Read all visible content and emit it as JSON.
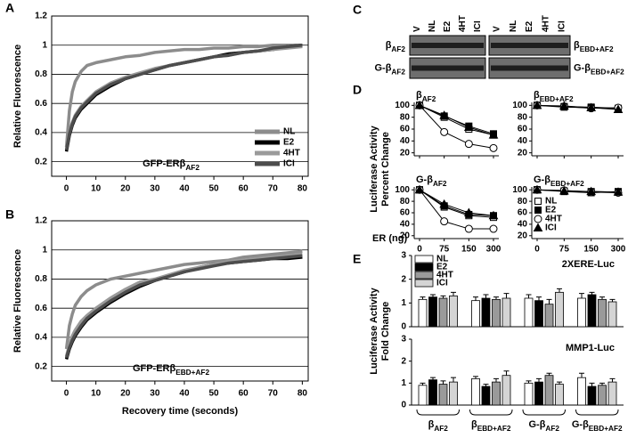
{
  "chart_data": [
    {
      "type": "line",
      "panel": "A",
      "ylabel": "Relative Fluorescence",
      "annotation": {
        "text": "GFP-ERβ",
        "sub": "AF2"
      },
      "x": [
        0,
        1,
        2,
        3,
        5,
        7,
        10,
        15,
        20,
        25,
        30,
        35,
        40,
        45,
        50,
        55,
        60,
        65,
        70,
        75,
        80
      ],
      "series": [
        {
          "name": "NL",
          "color": "#8c8c8c",
          "values": [
            0.3,
            0.55,
            0.68,
            0.75,
            0.82,
            0.86,
            0.88,
            0.9,
            0.92,
            0.93,
            0.95,
            0.96,
            0.97,
            0.97,
            0.98,
            0.98,
            0.99,
            0.99,
            1.0,
            1.0,
            1.0
          ]
        },
        {
          "name": "E2",
          "color": "#000000",
          "values": [
            0.27,
            0.38,
            0.45,
            0.5,
            0.56,
            0.6,
            0.66,
            0.72,
            0.77,
            0.8,
            0.83,
            0.86,
            0.88,
            0.9,
            0.92,
            0.94,
            0.95,
            0.96,
            0.97,
            0.99,
            1.0
          ]
        },
        {
          "name": "4HT",
          "color": "#9a9a9a",
          "values": [
            0.3,
            0.4,
            0.47,
            0.52,
            0.58,
            0.62,
            0.68,
            0.74,
            0.78,
            0.81,
            0.84,
            0.86,
            0.88,
            0.9,
            0.92,
            0.93,
            0.95,
            0.96,
            0.97,
            0.98,
            0.99
          ]
        },
        {
          "name": "ICI",
          "color": "#4d4d4d",
          "values": [
            0.28,
            0.39,
            0.46,
            0.51,
            0.57,
            0.61,
            0.67,
            0.73,
            0.77,
            0.8,
            0.83,
            0.86,
            0.88,
            0.9,
            0.92,
            0.93,
            0.95,
            0.96,
            0.98,
            0.99,
            1.0
          ]
        }
      ],
      "xlim": [
        -5,
        82
      ],
      "ylim": [
        0.1,
        1.2
      ],
      "xticks": [
        0,
        10,
        20,
        30,
        40,
        50,
        60,
        70,
        80
      ],
      "yticks": [
        0.2,
        0.4,
        0.6,
        0.8,
        1,
        1.2
      ],
      "grid": true,
      "legend": "right"
    },
    {
      "type": "line",
      "panel": "B",
      "ylabel": "Relative Fluorescence",
      "xlabel": "Recovery time (seconds)",
      "annotation": {
        "text": "GFP-ERβ",
        "sub": "EBD+AF2"
      },
      "x": [
        0,
        1,
        2,
        3,
        5,
        7,
        10,
        15,
        20,
        25,
        30,
        35,
        40,
        45,
        50,
        55,
        60,
        65,
        70,
        75,
        80
      ],
      "series": [
        {
          "name": "NL",
          "color": "#8c8c8c",
          "values": [
            0.32,
            0.48,
            0.56,
            0.62,
            0.68,
            0.72,
            0.76,
            0.8,
            0.82,
            0.84,
            0.86,
            0.88,
            0.9,
            0.91,
            0.92,
            0.93,
            0.95,
            0.96,
            0.97,
            0.98,
            0.99
          ]
        },
        {
          "name": "E2",
          "color": "#000000",
          "values": [
            0.25,
            0.32,
            0.37,
            0.41,
            0.47,
            0.52,
            0.57,
            0.64,
            0.7,
            0.75,
            0.79,
            0.82,
            0.85,
            0.88,
            0.9,
            0.91,
            0.92,
            0.93,
            0.94,
            0.94,
            0.95
          ]
        },
        {
          "name": "4HT",
          "color": "#9a9a9a",
          "values": [
            0.27,
            0.35,
            0.41,
            0.45,
            0.51,
            0.55,
            0.6,
            0.67,
            0.73,
            0.78,
            0.8,
            0.83,
            0.86,
            0.88,
            0.9,
            0.92,
            0.93,
            0.94,
            0.95,
            0.96,
            0.97
          ]
        },
        {
          "name": "ICI",
          "color": "#4d4d4d",
          "values": [
            0.26,
            0.33,
            0.38,
            0.42,
            0.48,
            0.53,
            0.58,
            0.65,
            0.71,
            0.76,
            0.79,
            0.82,
            0.85,
            0.87,
            0.89,
            0.91,
            0.92,
            0.93,
            0.94,
            0.95,
            0.96
          ]
        }
      ],
      "xlim": [
        -5,
        82
      ],
      "ylim": [
        0.1,
        1.2
      ],
      "xticks": [
        0,
        10,
        20,
        30,
        40,
        50,
        60,
        70,
        80
      ],
      "yticks": [
        0.2,
        0.4,
        0.6,
        0.8,
        1,
        1.2
      ],
      "grid": true
    },
    {
      "type": "blot",
      "panel": "C",
      "lanes": [
        "V",
        "NL",
        "E2",
        "4HT",
        "ICI"
      ],
      "left_rows": [
        {
          "text": "β",
          "sub": "AF2"
        },
        {
          "text": "G-β",
          "sub": "AF2"
        }
      ],
      "right_rows": [
        {
          "text": "β",
          "sub": "EBD+AF2"
        },
        {
          "text": "G-β",
          "sub": "EBD+AF2"
        }
      ]
    },
    {
      "type": "line",
      "panel": "D",
      "ylabel": [
        "Luciferase Activity",
        "Percent Change"
      ],
      "xlabel": "ER (ng)",
      "categories": [
        "0",
        "75",
        "150",
        "300"
      ],
      "ylim": [
        15,
        105
      ],
      "yticks": [
        20,
        40,
        60,
        80,
        100
      ],
      "series": [
        {
          "name": "NL",
          "marker": "square",
          "color": "#ffffff"
        },
        {
          "name": "E2",
          "marker": "square",
          "color": "#000000"
        },
        {
          "name": "4HT",
          "marker": "circle",
          "color": "#ffffff"
        },
        {
          "name": "ICI",
          "marker": "triangle",
          "color": "#000000"
        }
      ],
      "legend": "lower-right",
      "subplots": [
        {
          "title": {
            "text": "β",
            "sub": "AF2"
          },
          "values": [
            [
              100,
              80,
              60,
              50
            ],
            [
              100,
              82,
              65,
              52
            ],
            [
              100,
              55,
              35,
              28
            ],
            [
              100,
              83,
              63,
              50
            ]
          ]
        },
        {
          "title": {
            "text": "β",
            "sub": "EBD+AF2"
          },
          "values": [
            [
              100,
              98,
              97,
              95
            ],
            [
              100,
              97,
              96,
              94
            ],
            [
              100,
              98,
              95,
              96
            ],
            [
              100,
              99,
              96,
              93
            ]
          ]
        },
        {
          "title": {
            "text": "G-β",
            "sub": "AF2"
          },
          "values": [
            [
              100,
              70,
              55,
              52
            ],
            [
              100,
              72,
              57,
              55
            ],
            [
              100,
              45,
              32,
              32
            ],
            [
              100,
              75,
              60,
              55
            ]
          ]
        },
        {
          "title": {
            "text": "G-β",
            "sub": "EBD+AF2"
          },
          "values": [
            [
              100,
              98,
              97,
              96
            ],
            [
              100,
              97,
              95,
              97
            ],
            [
              100,
              99,
              96,
              95
            ],
            [
              100,
              98,
              97,
              96
            ]
          ]
        }
      ]
    },
    {
      "type": "bar",
      "panel": "E",
      "ylabel": [
        "Luciferase Activity",
        "Fold Change"
      ],
      "groups": [
        {
          "text": "β",
          "sub": "AF2"
        },
        {
          "text": "β",
          "sub": "EBD+AF2"
        },
        {
          "text": "G-β",
          "sub": "AF2"
        },
        {
          "text": "G-β",
          "sub": "EBD+AF2"
        }
      ],
      "series": [
        {
          "name": "NL",
          "color": "#ffffff"
        },
        {
          "name": "E2",
          "color": "#000000"
        },
        {
          "name": "4HT",
          "color": "#9a9a9a"
        },
        {
          "name": "ICI",
          "color": "#d4d4d4"
        }
      ],
      "ylim": [
        0,
        3
      ],
      "yticks": [
        0,
        1,
        2,
        3
      ],
      "legend": "upper-left",
      "subplots": [
        {
          "title": "2XERE-Luc",
          "values": [
            [
              1.15,
              1.1,
              1.2,
              1.2
            ],
            [
              1.25,
              1.2,
              1.1,
              1.35
            ],
            [
              1.2,
              1.15,
              0.95,
              1.15
            ],
            [
              1.3,
              1.2,
              1.45,
              1.05
            ]
          ],
          "errors": [
            [
              0.1,
              0.15,
              0.15,
              0.2
            ],
            [
              0.1,
              0.15,
              0.15,
              0.1
            ],
            [
              0.1,
              0.1,
              0.2,
              0.1
            ],
            [
              0.15,
              0.2,
              0.15,
              0.1
            ]
          ]
        },
        {
          "title": "MMP1-Luc",
          "values": [
            [
              0.9,
              1.2,
              1.0,
              1.25
            ],
            [
              1.15,
              0.85,
              1.05,
              0.85
            ],
            [
              0.95,
              1.05,
              1.35,
              0.9
            ],
            [
              1.05,
              1.35,
              0.95,
              1.05
            ]
          ],
          "errors": [
            [
              0.1,
              0.1,
              0.1,
              0.2
            ],
            [
              0.1,
              0.1,
              0.15,
              0.15
            ],
            [
              0.15,
              0.15,
              0.1,
              0.1
            ],
            [
              0.2,
              0.2,
              0.1,
              0.15
            ]
          ]
        }
      ]
    }
  ]
}
